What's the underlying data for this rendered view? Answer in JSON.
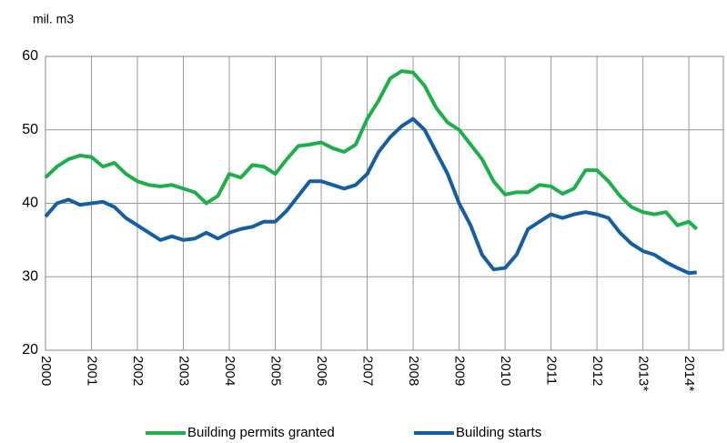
{
  "chart_data": {
    "type": "line",
    "ylabel": "mil. m3",
    "x": [
      2000,
      2000.25,
      2000.5,
      2000.75,
      2001,
      2001.25,
      2001.5,
      2001.75,
      2002,
      2002.25,
      2002.5,
      2002.75,
      2003,
      2003.25,
      2003.5,
      2003.75,
      2004,
      2004.25,
      2004.5,
      2004.75,
      2005,
      2005.25,
      2005.5,
      2005.75,
      2006,
      2006.25,
      2006.5,
      2006.75,
      2007,
      2007.25,
      2007.5,
      2007.75,
      2008,
      2008.25,
      2008.5,
      2008.75,
      2009,
      2009.25,
      2009.5,
      2009.75,
      2010,
      2010.25,
      2010.5,
      2010.75,
      2011,
      2011.25,
      2011.5,
      2011.75,
      2012,
      2012.25,
      2012.5,
      2012.75,
      2013,
      2013.25,
      2013.5,
      2013.75,
      2014,
      2014.17
    ],
    "series": [
      {
        "name": "Building permits granted",
        "color": "#1db04a",
        "values": [
          43.5,
          45,
          46,
          46.5,
          46.3,
          45,
          45.5,
          44,
          43,
          42.5,
          42.3,
          42.5,
          42,
          41.5,
          40,
          41,
          44,
          43.5,
          45.2,
          45,
          44,
          46,
          47.8,
          48,
          48.3,
          47.5,
          47,
          48,
          51.5,
          54,
          57,
          58,
          57.8,
          56,
          53,
          51,
          50,
          48,
          46,
          43,
          41.2,
          41.5,
          41.5,
          42.5,
          42.3,
          41.3,
          42,
          44.5,
          44.5,
          43,
          41,
          39.5,
          38.8,
          38.5,
          38.8,
          37,
          37.5,
          36.5
        ]
      },
      {
        "name": "Building starts",
        "color": "#155ea3",
        "values": [
          38.2,
          40,
          40.5,
          39.8,
          40,
          40.2,
          39.5,
          38,
          37,
          36,
          35,
          35.5,
          35,
          35.2,
          36,
          35.2,
          36,
          36.5,
          36.8,
          37.5,
          37.5,
          39,
          41,
          43,
          43,
          42.5,
          42,
          42.5,
          44,
          47,
          49,
          50.5,
          51.5,
          50,
          47,
          44,
          40,
          37,
          33,
          31,
          31.2,
          33,
          36.5,
          37.5,
          38.5,
          38,
          38.5,
          38.8,
          38.5,
          38,
          36,
          34.5,
          33.5,
          33,
          32,
          31.2,
          30.5,
          30.6
        ]
      }
    ],
    "xlim": [
      2000,
      2014.75
    ],
    "xticks": [
      2000,
      2001,
      2002,
      2003,
      2004,
      2005,
      2006,
      2007,
      2008,
      2009,
      2010,
      2011,
      2012,
      {
        "value": 2013,
        "label": "2013*"
      },
      {
        "value": 2014,
        "label": "2014*"
      }
    ],
    "ylim": [
      20,
      60
    ],
    "yticks": [
      20,
      30,
      40,
      50,
      60
    ],
    "grid": true,
    "legend": "bottom"
  }
}
